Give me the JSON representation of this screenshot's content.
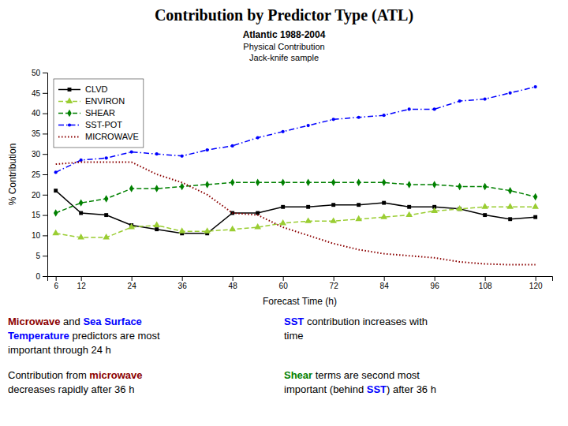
{
  "chart_data": {
    "type": "line",
    "title": "Contribution by Predictor Type (ATL)",
    "subtitle": [
      "Atlantic 1988-2004",
      "Physical Contribution",
      "Jack-knife sample"
    ],
    "xlabel": "Forecast Time (h)",
    "ylabel": "% Contribution",
    "xlim": [
      4,
      124
    ],
    "ylim": [
      0,
      50
    ],
    "xticks": [
      6,
      12,
      24,
      36,
      48,
      60,
      72,
      84,
      96,
      108,
      120
    ],
    "yticks": [
      0,
      5,
      10,
      15,
      20,
      25,
      30,
      35,
      40,
      45,
      50
    ],
    "grid": false,
    "legend": "upper left",
    "x": [
      6,
      12,
      18,
      24,
      30,
      36,
      42,
      48,
      54,
      60,
      66,
      72,
      78,
      84,
      90,
      96,
      102,
      108,
      114,
      120
    ],
    "series": [
      {
        "name": "CLVD",
        "color": "black",
        "line_style": "solid",
        "marker": "square",
        "values": [
          21,
          15.5,
          15,
          12.5,
          11.5,
          10.5,
          10.5,
          15.5,
          15.5,
          17,
          17,
          17.5,
          17.5,
          18,
          17,
          17,
          16.5,
          15,
          14,
          14.5
        ]
      },
      {
        "name": "ENVIRON",
        "color": "#9acd32",
        "line_style": "dashed",
        "marker": "triangle",
        "values": [
          10.5,
          9.5,
          9.5,
          12,
          12.5,
          11,
          11,
          11.5,
          12,
          13,
          13.5,
          13.5,
          14,
          14.5,
          15,
          16,
          16.5,
          17,
          17,
          17
        ]
      },
      {
        "name": "SHEAR",
        "color": "green",
        "line_style": "dashed",
        "marker": "diamond",
        "values": [
          15.5,
          18,
          19,
          21.5,
          21.5,
          22,
          22.5,
          23,
          23,
          23,
          23,
          23,
          23,
          23,
          22.5,
          22.5,
          22,
          22,
          21,
          19.5
        ]
      },
      {
        "name": "SST-POT",
        "color": "blue",
        "line_style": "dashdot",
        "marker": "point",
        "values": [
          25.5,
          28.5,
          29,
          30.5,
          30,
          29.5,
          31,
          32,
          34,
          35.5,
          37,
          38.5,
          39,
          39.5,
          41,
          41,
          43,
          43.5,
          45,
          46.5
        ]
      },
      {
        "name": "MICROWAVE",
        "color": "#8b0000",
        "line_style": "dotted",
        "marker": "none",
        "values": [
          27.5,
          28,
          28,
          28,
          25,
          23,
          20,
          15.5,
          15,
          12,
          10,
          8,
          6.5,
          5.5,
          5,
          4.5,
          3.5,
          3,
          2.8,
          2.8
        ]
      }
    ],
    "annotations": [
      [
        [
          {
            "text": "Microwave",
            "color": "#8b0000"
          },
          {
            "text": " and "
          },
          {
            "text": "Sea Surface",
            "color": "blue"
          }
        ],
        [
          {
            "text": "Temperature",
            "color": "blue"
          },
          {
            "text": " predictors are most"
          }
        ],
        [
          {
            "text": "important through 24 h"
          }
        ]
      ],
      [
        [
          {
            "text": "Contribution from "
          },
          {
            "text": "microwave",
            "color": "#8b0000"
          }
        ],
        [
          {
            "text": "decreases rapidly after 36 h"
          }
        ]
      ],
      [
        [
          {
            "text": "SST",
            "color": "blue"
          },
          {
            "text": " contribution increases with"
          }
        ],
        [
          {
            "text": "time"
          }
        ]
      ],
      [
        [
          {
            "text": "Shear",
            "color": "green"
          },
          {
            "text": " terms are second most"
          }
        ],
        [
          {
            "text": "important (behind "
          },
          {
            "text": "SST",
            "color": "blue"
          },
          {
            "text": ") after 36 h"
          }
        ]
      ]
    ]
  }
}
